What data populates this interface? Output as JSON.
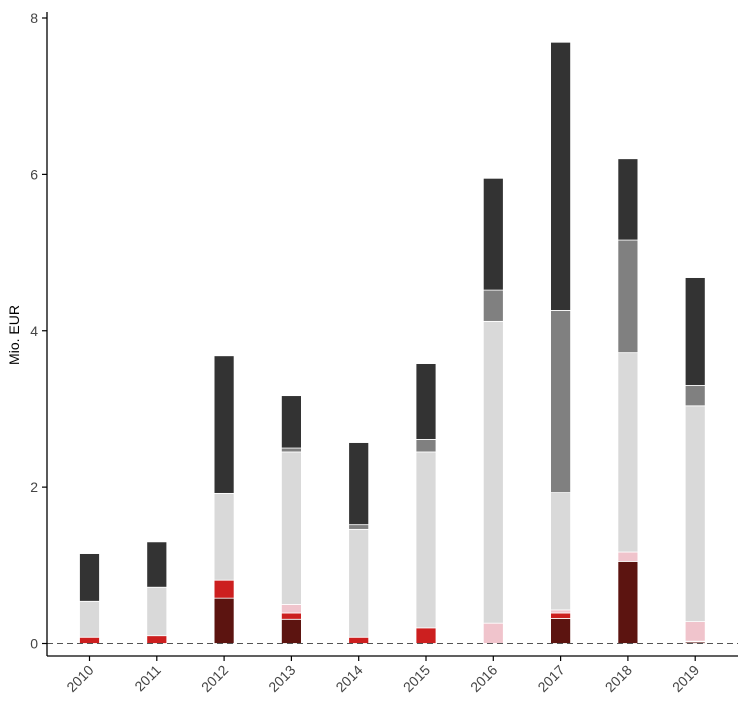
{
  "chart_data": {
    "type": "bar",
    "stacked": true,
    "title": "",
    "xlabel": "",
    "ylabel": "Mio. EUR",
    "ylim": [
      0,
      8
    ],
    "yticks": [
      0,
      2,
      4,
      6,
      8
    ],
    "grid": false,
    "reference_line": {
      "y": 0,
      "style": "dashed"
    },
    "categories": [
      "2010",
      "2011",
      "2012",
      "2013",
      "2014",
      "2015",
      "2016",
      "2017",
      "2018",
      "2019"
    ],
    "series": [
      {
        "color": "#5c1410",
        "values": [
          0,
          0,
          0.58,
          0.31,
          0,
          0,
          0,
          0.32,
          1.05,
          0.02
        ]
      },
      {
        "color": "#cc1f1f",
        "values": [
          0.08,
          0.1,
          0.23,
          0.08,
          0.08,
          0.2,
          0,
          0.07,
          0,
          0.01
        ]
      },
      {
        "color": "#f0c4cc",
        "values": [
          0,
          0,
          0,
          0.11,
          0,
          0,
          0.26,
          0.04,
          0.12,
          0.25
        ]
      },
      {
        "color": "#d9d9d9",
        "values": [
          0.46,
          0.62,
          1.11,
          1.95,
          1.38,
          2.25,
          3.86,
          1.5,
          2.55,
          2.76
        ]
      },
      {
        "color": "#808080",
        "values": [
          0,
          0,
          0,
          0.05,
          0.06,
          0.16,
          0.4,
          2.33,
          1.44,
          0.26
        ]
      },
      {
        "color": "#333333",
        "values": [
          0.61,
          0.58,
          1.76,
          0.67,
          1.05,
          0.97,
          1.43,
          3.43,
          1.04,
          1.38
        ]
      }
    ]
  }
}
